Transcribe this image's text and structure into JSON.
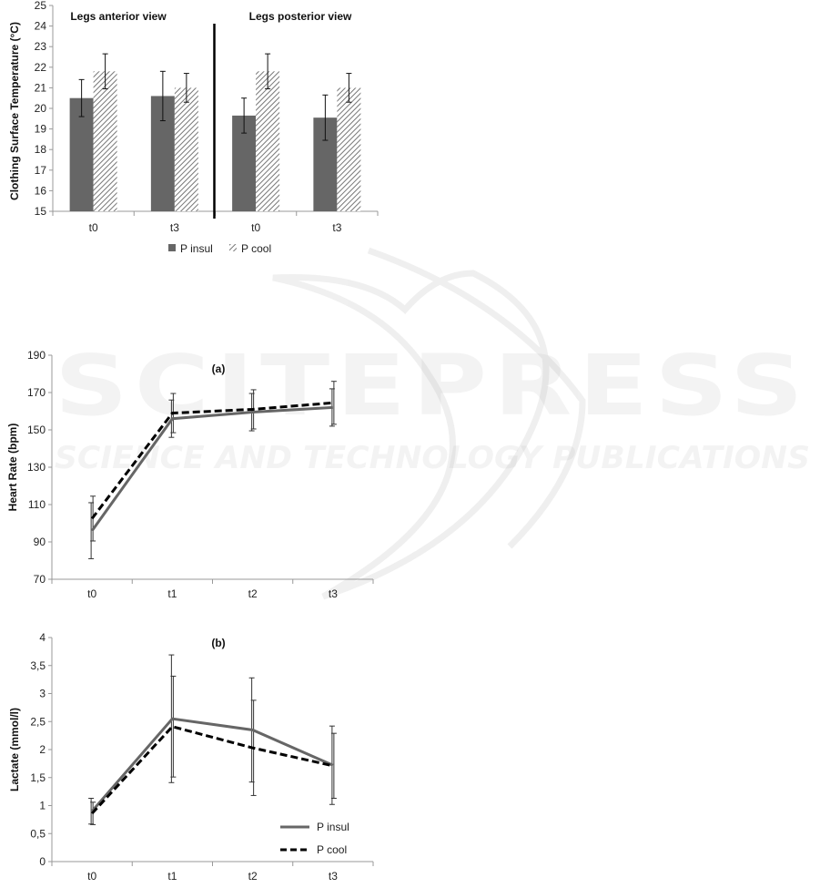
{
  "watermark": {
    "line1": "SCITEPRESS",
    "line2": "SCIENCE AND TECHNOLOGY PUBLICATIONS"
  },
  "colors": {
    "insul": "#666666",
    "cool_hatch": "#777777",
    "axis": "#999999",
    "divider": "#000000"
  },
  "chart_data": [
    {
      "type": "bar",
      "title": "",
      "panel_labels": [
        "Legs anterior view",
        "Legs posterior view"
      ],
      "categories": [
        "t0",
        "t3",
        "t0",
        "t3"
      ],
      "ylabel": "Clothing Surface Temperature  (°C)",
      "xlabel": "",
      "ylim": [
        15,
        25
      ],
      "yticks": [
        15,
        16,
        17,
        18,
        19,
        20,
        21,
        22,
        23,
        24,
        25
      ],
      "grid": false,
      "legend": "bottom",
      "series": [
        {
          "name": "P insul",
          "values": [
            20.5,
            20.6,
            19.65,
            19.55
          ],
          "error": [
            0.9,
            1.2,
            0.85,
            1.1
          ],
          "fill": "solid"
        },
        {
          "name": "P cool",
          "values": [
            21.8,
            21.0,
            21.8,
            21.0
          ],
          "error": [
            0.85,
            0.7,
            0.85,
            0.7
          ],
          "fill": "hatched"
        }
      ]
    },
    {
      "type": "line",
      "title": "(a)",
      "x": [
        "t0",
        "t1",
        "t2",
        "t3"
      ],
      "ylabel": "Heart Rate (bpm)",
      "xlabel": "",
      "ylim": [
        70,
        190
      ],
      "yticks": [
        70,
        90,
        110,
        130,
        150,
        170,
        190
      ],
      "grid": false,
      "legend": "none",
      "series": [
        {
          "name": "P insul",
          "values": [
            96,
            156,
            159.5,
            162
          ],
          "error": [
            15,
            10,
            10,
            10
          ],
          "style": "solid"
        },
        {
          "name": "P cool",
          "values": [
            102.5,
            159,
            161,
            164.5
          ],
          "error": [
            12,
            10.5,
            10.5,
            11.5
          ],
          "style": "dashed"
        }
      ]
    },
    {
      "type": "line",
      "title": "(b)",
      "x": [
        "t0",
        "t1",
        "t2",
        "t3"
      ],
      "ylabel": "Lactate (mmol/l)",
      "xlabel": "",
      "ylim": [
        0,
        4
      ],
      "yticks": [
        "0",
        "0,5",
        "1",
        "1,5",
        "2",
        "2,5",
        "3",
        "3,5",
        "4"
      ],
      "grid": false,
      "legend": "bottom-right",
      "series": [
        {
          "name": "P insul",
          "values": [
            0.9,
            2.55,
            2.35,
            1.72
          ],
          "error": [
            0.23,
            1.14,
            0.93,
            0.7
          ],
          "style": "solid"
        },
        {
          "name": "P cool",
          "values": [
            0.86,
            2.41,
            2.03,
            1.71
          ],
          "error": [
            0.2,
            0.9,
            0.85,
            0.58
          ],
          "style": "dashed"
        }
      ]
    }
  ]
}
